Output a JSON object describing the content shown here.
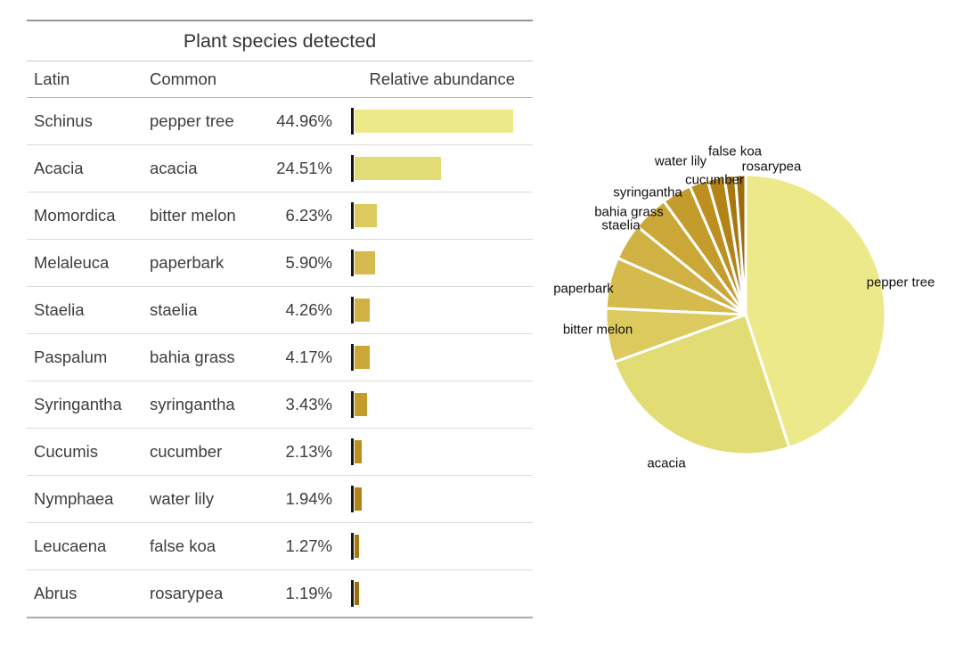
{
  "table": {
    "title": "Plant species detected",
    "columns": [
      "Latin",
      "Common",
      "Relative abundance"
    ],
    "rows": [
      {
        "latin": "Schinus",
        "common": "pepper tree",
        "pct": "44.96%",
        "value": 44.96
      },
      {
        "latin": "Acacia",
        "common": "acacia",
        "pct": "24.51%",
        "value": 24.51
      },
      {
        "latin": "Momordica",
        "common": "bitter melon",
        "pct": "6.23%",
        "value": 6.23
      },
      {
        "latin": "Melaleuca",
        "common": "paperbark",
        "pct": "5.90%",
        "value": 5.9
      },
      {
        "latin": "Staelia",
        "common": "staelia",
        "pct": "4.26%",
        "value": 4.26
      },
      {
        "latin": "Paspalum",
        "common": "bahia grass",
        "pct": "4.17%",
        "value": 4.17
      },
      {
        "latin": "Syringantha",
        "common": "syringantha",
        "pct": "3.43%",
        "value": 3.43
      },
      {
        "latin": "Cucumis",
        "common": "cucumber",
        "pct": "2.13%",
        "value": 2.13
      },
      {
        "latin": "Nymphaea",
        "common": "water lily",
        "pct": "1.94%",
        "value": 1.94
      },
      {
        "latin": "Leucaena",
        "common": "false koa",
        "pct": "1.27%",
        "value": 1.27
      },
      {
        "latin": "Abrus",
        "common": "rosarypea",
        "pct": "1.19%",
        "value": 1.19
      }
    ]
  },
  "chart_data": {
    "type": "pie",
    "title": "",
    "categories": [
      "pepper tree",
      "acacia",
      "bitter melon",
      "paperbark",
      "staelia",
      "bahia grass",
      "syringantha",
      "cucumber",
      "water lily",
      "false koa",
      "rosarypea"
    ],
    "values": [
      44.96,
      24.51,
      6.23,
      5.9,
      4.26,
      4.17,
      3.43,
      2.13,
      1.94,
      1.27,
      1.19
    ],
    "colors": [
      "#ECE98B",
      "#E2DC74",
      "#DCCA5F",
      "#D5BB4E",
      "#D0B143",
      "#CBA737",
      "#C49C2B",
      "#BC8F1F",
      "#B28316",
      "#A87810",
      "#9D6B0C"
    ],
    "start_angle_deg": 0,
    "direction": "clockwise",
    "slice_gap_color": "#ffffff",
    "legend": "none",
    "labels_outside": true
  }
}
